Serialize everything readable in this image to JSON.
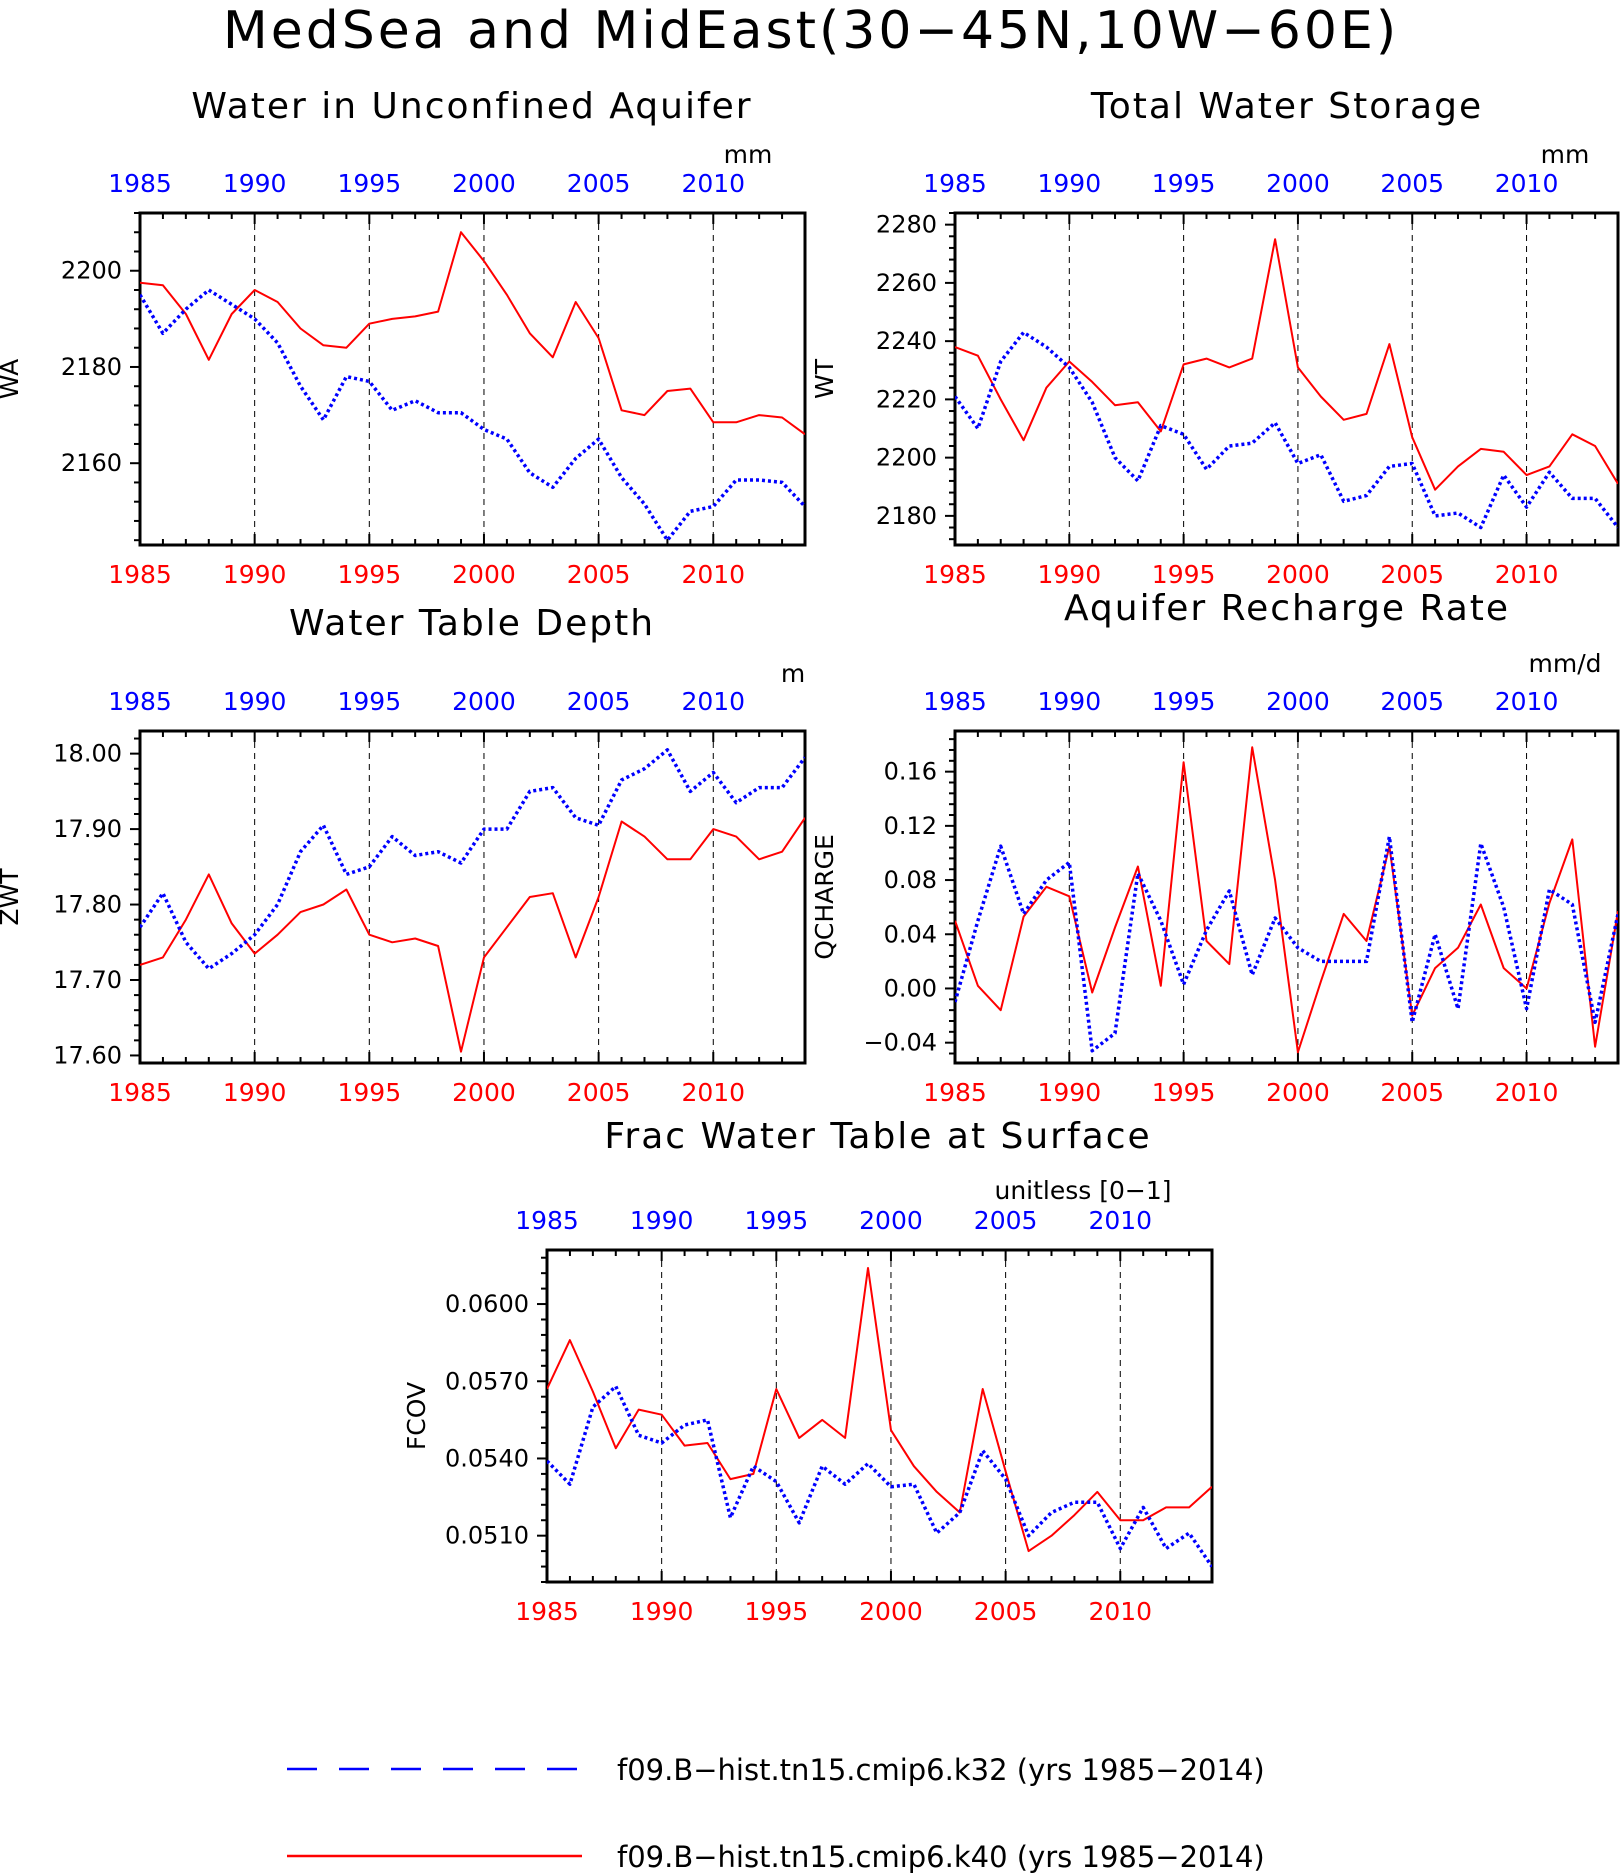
{
  "figure": {
    "title": "MedSea and MidEast(30−45N,10W−60E)"
  },
  "colors": {
    "k32": "#0000ff",
    "k40": "#ff0000",
    "axis": "#000000",
    "top_tick_labels": "#0000ff",
    "bottom_tick_labels": "#ff0000"
  },
  "legend": {
    "entries": [
      {
        "label": "f09.B−hist.tn15.cmip6.k32 (yrs 1985−2014)",
        "color": "#0000ff",
        "style": "dashed"
      },
      {
        "label": "f09.B−hist.tn15.cmip6.k40 (yrs 1985−2014)",
        "color": "#ff0000",
        "style": "solid"
      }
    ]
  },
  "chart_data": [
    {
      "id": "wa",
      "type": "line",
      "title": "Water in Unconfined Aquifer",
      "ylabel": "WA",
      "units": "mm",
      "xlim": [
        1985,
        2014
      ],
      "ylim": [
        2143,
        2212
      ],
      "yticks": [
        2160,
        2180,
        2200
      ],
      "ytick_labels": [
        "2160",
        "2180",
        "2200"
      ],
      "xticks": [
        1985,
        1990,
        1995,
        2000,
        2005,
        2010
      ],
      "xtick_labels": [
        "1985",
        "1990",
        "1995",
        "2000",
        "2005",
        "2010"
      ],
      "grid": "dashed vertical at 1990, 1995, 2000, 2005, 2010",
      "x": [
        1985,
        1986,
        1987,
        1988,
        1989,
        1990,
        1991,
        1992,
        1993,
        1994,
        1995,
        1996,
        1997,
        1998,
        1999,
        2000,
        2001,
        2002,
        2003,
        2004,
        2005,
        2006,
        2007,
        2008,
        2009,
        2010,
        2011,
        2012,
        2013,
        2014
      ],
      "series": [
        {
          "name": "f09.B−hist.tn15.cmip6.k32 (yrs 1985−2014)",
          "key": "k32",
          "values": [
            2195,
            2187,
            2192,
            2196,
            2193,
            2190,
            2185,
            2176,
            2169,
            2178,
            2177,
            2171,
            2173,
            2170.5,
            2170.5,
            2167,
            2165,
            2158,
            2155,
            2161,
            2165,
            2157,
            2151.5,
            2144,
            2150,
            2151,
            2156.5,
            2156.5,
            2156,
            2151
          ]
        },
        {
          "name": "f09.B−hist.tn15.cmip6.k40 (yrs 1985−2014)",
          "key": "k40",
          "values": [
            2197.5,
            2197,
            2191,
            2181.5,
            2191,
            2196,
            2193.5,
            2188,
            2184.5,
            2184,
            2189,
            2190,
            2190.5,
            2191.5,
            2208,
            2202,
            2195,
            2187,
            2182,
            2193.5,
            2186,
            2171,
            2170,
            2175,
            2175.5,
            2168.5,
            2168.5,
            2170,
            2169.5,
            2166
          ]
        }
      ]
    },
    {
      "id": "wt",
      "type": "line",
      "title": "Total Water Storage",
      "ylabel": "WT",
      "units": "mm",
      "xlim": [
        1985,
        2014
      ],
      "ylim": [
        2170,
        2284
      ],
      "yticks": [
        2180,
        2200,
        2220,
        2240,
        2260,
        2280
      ],
      "ytick_labels": [
        "2180",
        "2200",
        "2220",
        "2240",
        "2260",
        "2280"
      ],
      "xticks": [
        1985,
        1990,
        1995,
        2000,
        2005,
        2010
      ],
      "xtick_labels": [
        "1985",
        "1990",
        "1995",
        "2000",
        "2005",
        "2010"
      ],
      "grid": "dashed vertical at 1990, 1995, 2000, 2005, 2010",
      "x": [
        1985,
        1986,
        1987,
        1988,
        1989,
        1990,
        1991,
        1992,
        1993,
        1994,
        1995,
        1996,
        1997,
        1998,
        1999,
        2000,
        2001,
        2002,
        2003,
        2004,
        2005,
        2006,
        2007,
        2008,
        2009,
        2010,
        2011,
        2012,
        2013,
        2014
      ],
      "series": [
        {
          "name": "f09.B−hist.tn15.cmip6.k32 (yrs 1985−2014)",
          "key": "k32",
          "values": [
            2221,
            2210,
            2233,
            2243,
            2238,
            2231,
            2219,
            2200,
            2192,
            2211,
            2208,
            2196,
            2204,
            2205,
            2212,
            2198,
            2201,
            2185,
            2187,
            2197,
            2198,
            2180,
            2181,
            2176,
            2194,
            2183,
            2195,
            2186,
            2186,
            2176
          ]
        },
        {
          "name": "f09.B−hist.tn15.cmip6.k40 (yrs 1985−2014)",
          "key": "k40",
          "values": [
            2238,
            2235,
            2220,
            2206,
            2224,
            2233,
            2226,
            2218,
            2219,
            2209,
            2232,
            2234,
            2231,
            2234,
            2275,
            2231,
            2221,
            2213,
            2215,
            2239,
            2207,
            2189,
            2197,
            2203,
            2202,
            2194,
            2197,
            2208,
            2204,
            2191
          ]
        }
      ]
    },
    {
      "id": "zwt",
      "type": "line",
      "title": "Water Table Depth",
      "ylabel": "ZWT",
      "units": "m",
      "xlim": [
        1985,
        2014
      ],
      "ylim": [
        17.59,
        18.03
      ],
      "yticks": [
        17.6,
        17.7,
        17.8,
        17.9,
        18.0
      ],
      "ytick_labels": [
        "17.60",
        "17.70",
        "17.80",
        "17.90",
        "18.00"
      ],
      "xticks": [
        1985,
        1990,
        1995,
        2000,
        2005,
        2010
      ],
      "xtick_labels": [
        "1985",
        "1990",
        "1995",
        "2000",
        "2005",
        "2010"
      ],
      "grid": "dashed vertical at 1990, 1995, 2000, 2005, 2010",
      "x": [
        1985,
        1986,
        1987,
        1988,
        1989,
        1990,
        1991,
        1992,
        1993,
        1994,
        1995,
        1996,
        1997,
        1998,
        1999,
        2000,
        2001,
        2002,
        2003,
        2004,
        2005,
        2006,
        2007,
        2008,
        2009,
        2010,
        2011,
        2012,
        2013,
        2014
      ],
      "series": [
        {
          "name": "f09.B−hist.tn15.cmip6.k32 (yrs 1985−2014)",
          "key": "k32",
          "values": [
            17.77,
            17.815,
            17.75,
            17.715,
            17.735,
            17.76,
            17.8,
            17.87,
            17.905,
            17.84,
            17.85,
            17.89,
            17.865,
            17.87,
            17.855,
            17.9,
            17.9,
            17.95,
            17.955,
            17.915,
            17.905,
            17.965,
            17.98,
            18.005,
            17.95,
            17.975,
            17.935,
            17.955,
            17.955,
            17.995
          ]
        },
        {
          "name": "f09.B−hist.tn15.cmip6.k40 (yrs 1985−2014)",
          "key": "k40",
          "values": [
            17.72,
            17.73,
            17.78,
            17.84,
            17.775,
            17.735,
            17.76,
            17.79,
            17.8,
            17.82,
            17.76,
            17.75,
            17.755,
            17.745,
            17.605,
            17.73,
            17.77,
            17.81,
            17.815,
            17.73,
            17.81,
            17.91,
            17.89,
            17.86,
            17.86,
            17.9,
            17.89,
            17.86,
            17.87,
            17.915
          ]
        }
      ]
    },
    {
      "id": "qcharge",
      "type": "line",
      "title": "Aquifer Recharge Rate",
      "ylabel": "QCHARGE",
      "units": "mm/d",
      "xlim": [
        1985,
        2014
      ],
      "ylim": [
        -0.055,
        0.19
      ],
      "yticks": [
        -0.04,
        0.0,
        0.04,
        0.08,
        0.12,
        0.16
      ],
      "ytick_labels": [
        "−0.04",
        "0.00",
        "0.04",
        "0.08",
        "0.12",
        "0.16"
      ],
      "xticks": [
        1985,
        1990,
        1995,
        2000,
        2005,
        2010
      ],
      "xtick_labels": [
        "1985",
        "1990",
        "1995",
        "2000",
        "2005",
        "2010"
      ],
      "grid": "dashed vertical at 1990, 1995, 2000, 2005, 2010",
      "x": [
        1985,
        1986,
        1987,
        1988,
        1989,
        1990,
        1991,
        1992,
        1993,
        1994,
        1995,
        1996,
        1997,
        1998,
        1999,
        2000,
        2001,
        2002,
        2003,
        2004,
        2005,
        2006,
        2007,
        2008,
        2009,
        2010,
        2011,
        2012,
        2013,
        2014
      ],
      "series": [
        {
          "name": "f09.B−hist.tn15.cmip6.k32 (yrs 1985−2014)",
          "key": "k32",
          "values": [
            -0.01,
            0.05,
            0.105,
            0.055,
            0.08,
            0.093,
            -0.046,
            -0.033,
            0.085,
            0.05,
            0.003,
            0.043,
            0.072,
            0.01,
            0.052,
            0.03,
            0.02,
            0.02,
            0.02,
            0.112,
            -0.025,
            0.04,
            -0.015,
            0.107,
            0.06,
            -0.015,
            0.073,
            0.062,
            -0.025,
            0.055
          ]
        },
        {
          "name": "f09.B−hist.tn15.cmip6.k40 (yrs 1985−2014)",
          "key": "k40",
          "values": [
            0.05,
            0.002,
            -0.016,
            0.053,
            0.075,
            0.068,
            -0.003,
            0.045,
            0.09,
            0.002,
            0.167,
            0.035,
            0.018,
            0.178,
            0.08,
            -0.047,
            0.005,
            0.055,
            0.035,
            0.105,
            -0.02,
            0.015,
            0.03,
            0.062,
            0.015,
            0.0,
            0.063,
            0.11,
            -0.043,
            0.057
          ]
        }
      ]
    },
    {
      "id": "fcov",
      "type": "line",
      "title": "Frac Water Table at Surface",
      "ylabel": "FCOV",
      "units": "unitless [0−1]",
      "xlim": [
        1985,
        2014
      ],
      "ylim": [
        0.0492,
        0.0621
      ],
      "yticks": [
        0.051,
        0.054,
        0.057,
        0.06
      ],
      "ytick_labels": [
        "0.0510",
        "0.0540",
        "0.0570",
        "0.0600"
      ],
      "xticks": [
        1985,
        1990,
        1995,
        2000,
        2005,
        2010
      ],
      "xtick_labels": [
        "1985",
        "1990",
        "1995",
        "2000",
        "2005",
        "2010"
      ],
      "grid": "dashed vertical at 1990, 1995, 2000, 2005, 2010",
      "x": [
        1985,
        1986,
        1987,
        1988,
        1989,
        1990,
        1991,
        1992,
        1993,
        1994,
        1995,
        1996,
        1997,
        1998,
        1999,
        2000,
        2001,
        2002,
        2003,
        2004,
        2005,
        2006,
        2007,
        2008,
        2009,
        2010,
        2011,
        2012,
        2013,
        2014
      ],
      "series": [
        {
          "name": "f09.B−hist.tn15.cmip6.k32 (yrs 1985−2014)",
          "key": "k32",
          "values": [
            0.0539,
            0.053,
            0.056,
            0.0568,
            0.0549,
            0.0546,
            0.0553,
            0.0555,
            0.0517,
            0.0537,
            0.0531,
            0.0515,
            0.0537,
            0.053,
            0.0538,
            0.0529,
            0.053,
            0.0511,
            0.0519,
            0.0543,
            0.0532,
            0.051,
            0.0519,
            0.0523,
            0.0523,
            0.0505,
            0.0521,
            0.0505,
            0.0511,
            0.0498
          ]
        },
        {
          "name": "f09.B−hist.tn15.cmip6.k40 (yrs 1985−2014)",
          "key": "k40",
          "values": [
            0.0567,
            0.0586,
            0.0566,
            0.0544,
            0.0559,
            0.0557,
            0.0545,
            0.0546,
            0.0532,
            0.0534,
            0.0567,
            0.0548,
            0.0555,
            0.0548,
            0.0614,
            0.0551,
            0.0537,
            0.0527,
            0.0519,
            0.0567,
            0.0535,
            0.0504,
            0.051,
            0.0518,
            0.0527,
            0.0516,
            0.0516,
            0.0521,
            0.0521,
            0.0529
          ]
        }
      ]
    }
  ]
}
